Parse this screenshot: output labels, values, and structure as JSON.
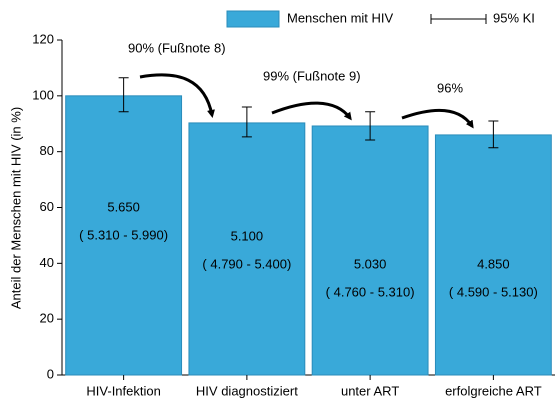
{
  "chart_data": {
    "type": "bar",
    "y_label": "Anteil der Menschen mit HIV (in %)",
    "categories": [
      "HIV-Infektion",
      "HIV diagnostiziert",
      "unter ART",
      "erfolgreiche ART"
    ],
    "series": [
      {
        "name": "Menschen mit HIV",
        "color": "#39a9d9",
        "values": [
          100,
          90.3,
          89.2,
          86
        ]
      }
    ],
    "error_name": "95% KI",
    "error_low": [
      94.3,
      85.3,
      84.2,
      81.4
    ],
    "error_high": [
      106.5,
      96,
      94.3,
      91
    ],
    "counts": [
      "5.650",
      "5.100",
      "5.030",
      "4.850"
    ],
    "count_intervals": [
      "( 5.310 -  5.990)",
      "( 4.790 -  5.400)",
      "( 4.760 -  5.310)",
      "( 4.590 -  5.130)"
    ],
    "annotations": [
      "90% (Fußnote 8)",
      "99%  (Fußnote 9)",
      "96%"
    ],
    "ylim": [
      0,
      120
    ],
    "yticks": [
      0,
      20,
      40,
      60,
      80,
      100,
      120
    ],
    "grid": false
  }
}
